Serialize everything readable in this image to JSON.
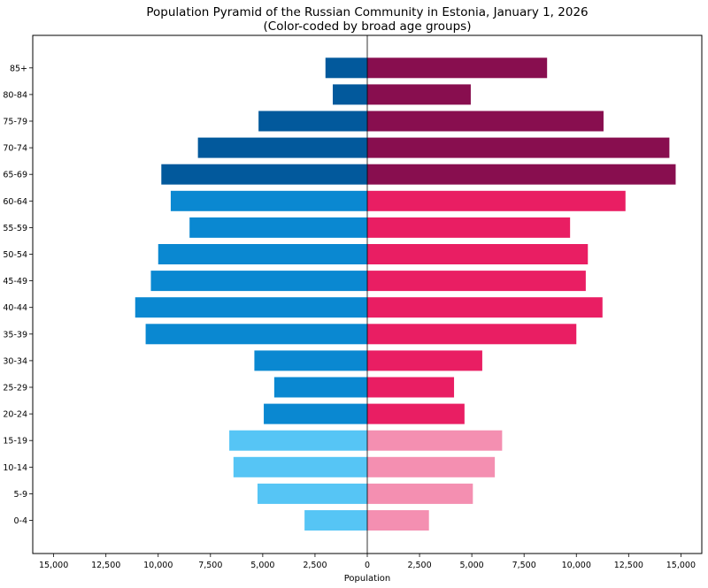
{
  "chart_data": {
    "type": "bar",
    "orientation": "horizontal",
    "layout": "population-pyramid",
    "title": "Population Pyramid of the Russian Community in Estonia, January 1, 2026",
    "subtitle": "(Color-coded by broad age groups)",
    "xlabel": "Population",
    "ylabel": "",
    "xlim": [
      -16000,
      16000
    ],
    "x_ticks": [
      -15000,
      -12500,
      -10000,
      -7500,
      -5000,
      -2500,
      0,
      2500,
      5000,
      7500,
      10000,
      12500,
      15000
    ],
    "x_tick_labels": [
      "15,000",
      "12,500",
      "10,000",
      "7,500",
      "5,000",
      "2,500",
      "0",
      "2,500",
      "5,000",
      "7,500",
      "10,000",
      "12,500",
      "15,000"
    ],
    "categories": [
      "0-4",
      "5-9",
      "10-14",
      "15-19",
      "20-24",
      "25-29",
      "30-34",
      "35-39",
      "40-44",
      "45-49",
      "50-54",
      "55-59",
      "60-64",
      "65-69",
      "70-74",
      "75-79",
      "80-84",
      "85+"
    ],
    "series": [
      {
        "side": "left",
        "values": [
          3000,
          5250,
          6400,
          6600,
          4950,
          4450,
          5400,
          10600,
          11100,
          10350,
          10000,
          8500,
          9400,
          9850,
          8100,
          5200,
          1650,
          2000
        ]
      },
      {
        "side": "right",
        "values": [
          2950,
          5050,
          6100,
          6450,
          4650,
          4150,
          5500,
          10000,
          11250,
          10450,
          10550,
          9700,
          12350,
          14750,
          14450,
          11300,
          4950,
          8600
        ]
      }
    ],
    "group_colors": {
      "left": {
        "0-19": "#56c5f5",
        "20-64": "#0a88d1",
        "65+": "#02599c"
      },
      "right": {
        "0-19": "#f48fb1",
        "20-64": "#e91e63",
        "65+": "#880e4f"
      }
    },
    "grid": false,
    "legend": "none"
  }
}
